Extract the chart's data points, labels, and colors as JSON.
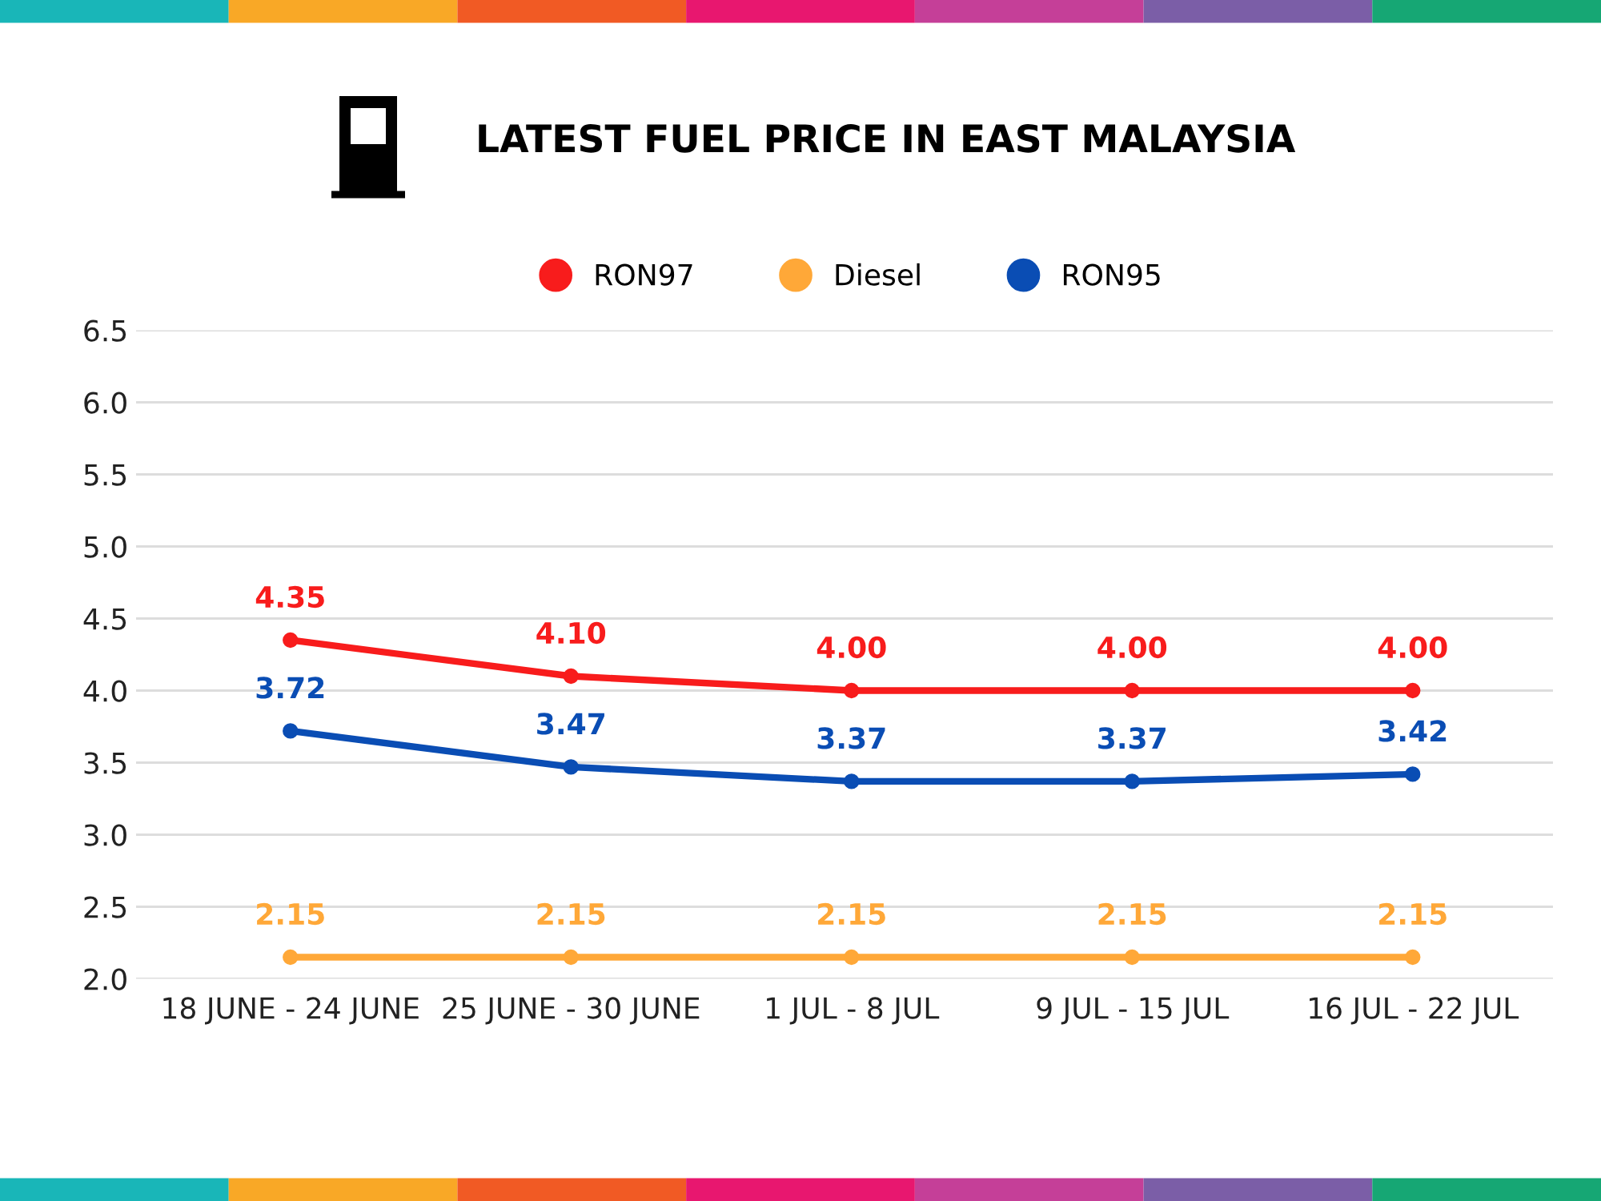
{
  "chart_data": {
    "type": "line",
    "title": "LATEST FUEL PRICE IN EAST MALAYSIA",
    "categories": [
      "18 JUNE - 24 JUNE",
      "25 JUNE - 30 JUNE",
      "1 JUL - 8 JUL",
      "9 JUL - 15 JUL",
      "16 JUL - 22 JUL"
    ],
    "series": [
      {
        "name": "RON97",
        "color": "#f81c1c",
        "values": [
          4.35,
          4.1,
          4.0,
          4.0,
          4.0
        ],
        "value_labels": [
          "4.35",
          "4.10",
          "4.00",
          "4.00",
          "4.00"
        ]
      },
      {
        "name": "Diesel",
        "color": "#ffa838",
        "values": [
          2.15,
          2.15,
          2.15,
          2.15,
          2.15
        ],
        "value_labels": [
          "2.15",
          "2.15",
          "2.15",
          "2.15",
          "2.15"
        ]
      },
      {
        "name": "RON95",
        "color": "#0a4db4",
        "values": [
          3.72,
          3.47,
          3.37,
          3.37,
          3.42
        ],
        "value_labels": [
          "3.72",
          "3.47",
          "3.37",
          "3.37",
          "3.42"
        ]
      }
    ],
    "ylim": [
      2.0,
      6.5
    ],
    "yticks": [
      {
        "value": 2.0,
        "label": "2.0"
      },
      {
        "value": 2.5,
        "label": "2.5"
      },
      {
        "value": 3.0,
        "label": "3.0"
      },
      {
        "value": 3.5,
        "label": "3.5"
      },
      {
        "value": 4.0,
        "label": "4.0"
      },
      {
        "value": 4.5,
        "label": "4.5"
      },
      {
        "value": 5.0,
        "label": "5.0"
      },
      {
        "value": 5.5,
        "label": "5.5"
      },
      {
        "value": 6.0,
        "label": "6.0"
      },
      {
        "value": 6.5,
        "label": "6.5"
      }
    ],
    "grid": "y",
    "legend": "top",
    "marker": "circle",
    "line_style": "solid"
  }
}
